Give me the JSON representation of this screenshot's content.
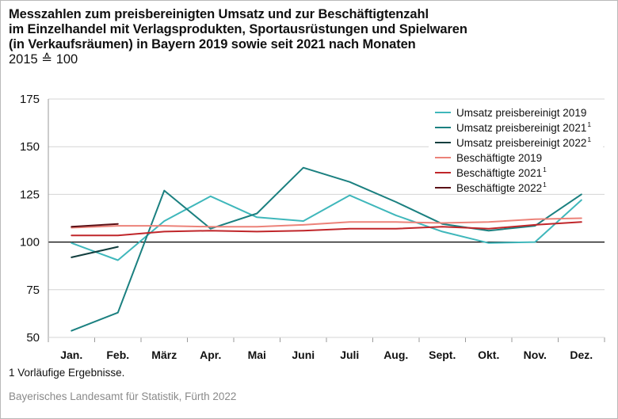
{
  "title_lines": [
    "Messzahlen zum preisbereinigten Umsatz und zur Beschäftigtenzahl",
    "im Einzelhandel mit Verlagsprodukten, Sportausrüstungen und Spielwaren",
    "(in Verkaufsräumen) in Bayern 2019 sowie seit 2021 nach Monaten"
  ],
  "subtitle": "2015 ≙ 100",
  "footnote": "1  Vorläufige Ergebnisse.",
  "source": "Bayerisches Landesamt für Statistik, Fürth 2022",
  "chart_data": {
    "type": "line",
    "categories": [
      "Jan.",
      "Feb.",
      "März",
      "Apr.",
      "Mai",
      "Juni",
      "Juli",
      "Aug.",
      "Sept.",
      "Okt.",
      "Nov.",
      "Dez."
    ],
    "ylim": [
      50,
      175
    ],
    "yticks": [
      175,
      150,
      125,
      100,
      75,
      50
    ],
    "reference_line": 100,
    "grid": "horizontal",
    "legend_position": "top-right",
    "series": [
      {
        "name": "Umsatz preisbereinigt 2019",
        "sup": "",
        "color": "#3fb7bb",
        "values": [
          99.5,
          90.5,
          111,
          124,
          113,
          111,
          124.5,
          114,
          105.5,
          99.5,
          100,
          122
        ]
      },
      {
        "name": "Umsatz preisbereinigt 2021",
        "sup": "1",
        "color": "#1b8080",
        "values": [
          53.5,
          63,
          127,
          107,
          115,
          139,
          131.5,
          121,
          109.5,
          106,
          108.5,
          125
        ]
      },
      {
        "name": "Umsatz preisbereinigt 2022",
        "sup": "1",
        "color": "#123e3e",
        "values": [
          92,
          97.5,
          null,
          null,
          null,
          null,
          null,
          null,
          null,
          null,
          null,
          null
        ]
      },
      {
        "name": "Beschäftigte 2019",
        "sup": "",
        "color": "#ec8279",
        "values": [
          107.5,
          108.5,
          108.5,
          108,
          108,
          109,
          110.5,
          110.5,
          110,
          110.5,
          112,
          112.5
        ]
      },
      {
        "name": "Beschäftigte 2021",
        "sup": "1",
        "color": "#c0262a",
        "values": [
          103.5,
          103.5,
          105.5,
          106,
          105.5,
          106,
          107,
          107,
          108,
          107,
          109,
          110.5
        ]
      },
      {
        "name": "Beschäftigte 2022",
        "sup": "1",
        "color": "#5a1016",
        "values": [
          108,
          109.5,
          null,
          null,
          null,
          null,
          null,
          null,
          null,
          null,
          null,
          null
        ]
      }
    ]
  }
}
